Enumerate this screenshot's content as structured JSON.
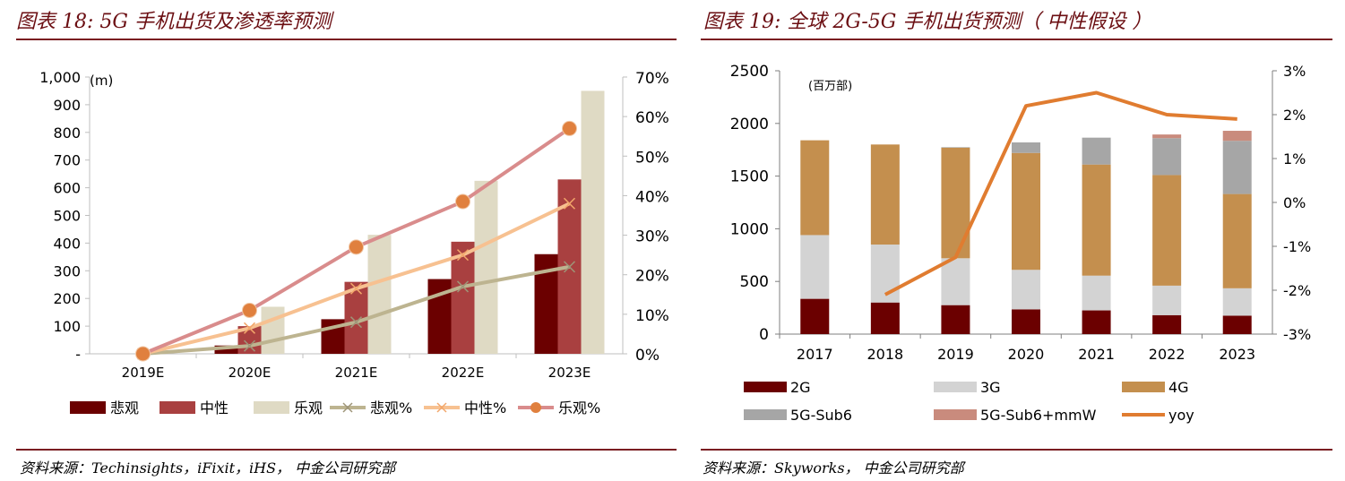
{
  "left": {
    "title": "图表 18: 5G 手机出货及渗透率预测",
    "source": "资料来源：Techinsights，iFixit，iHS， 中金公司研究部",
    "colors": {
      "bear": "#6b0000",
      "base": "#a94040",
      "bull": "#dfdac4",
      "bear_pct": "#bdb490",
      "base_pct": "#f7c191",
      "bull_pct": "#d98c8c",
      "dot": "#e0803e"
    },
    "chart_data": {
      "type": "bar",
      "categories": [
        "2019E",
        "2020E",
        "2021E",
        "2022E",
        "2023E"
      ],
      "unit_label": "(m)",
      "y_ticks": [
        "-",
        "100",
        "200",
        "300",
        "400",
        "500",
        "600",
        "700",
        "800",
        "900",
        "1,000"
      ],
      "ylim": [
        0,
        1000
      ],
      "y2_ticks": [
        "0%",
        "10%",
        "20%",
        "30%",
        "40%",
        "50%",
        "60%",
        "70%"
      ],
      "y2lim": [
        0,
        0.7
      ],
      "series": [
        {
          "name": "悲观",
          "kind": "bar",
          "values": [
            0,
            30,
            125,
            270,
            360
          ]
        },
        {
          "name": "中性",
          "kind": "bar",
          "values": [
            0,
            100,
            260,
            405,
            630
          ]
        },
        {
          "name": "乐观",
          "kind": "bar",
          "values": [
            0,
            170,
            430,
            625,
            950
          ]
        },
        {
          "name": "悲观%",
          "kind": "line",
          "values": [
            0.0,
            0.02,
            0.08,
            0.17,
            0.22
          ]
        },
        {
          "name": "中性%",
          "kind": "line",
          "values": [
            0.0,
            0.065,
            0.165,
            0.25,
            0.38
          ]
        },
        {
          "name": "乐观%",
          "kind": "line",
          "values": [
            0.0,
            0.11,
            0.27,
            0.385,
            0.57
          ]
        }
      ]
    }
  },
  "right": {
    "title": "图表 19:  全球 2G-5G 手机出货预测（ 中性假设 ）",
    "source": "资料来源：Skyworks， 中金公司研究部",
    "colors": {
      "2G": "#6b0000",
      "3G": "#d3d3d3",
      "4G": "#c48f4e",
      "5G-Sub6": "#a6a6a6",
      "5G-Sub6+mmW": "#c98b7d",
      "yoy": "#e07c30"
    },
    "chart_data": {
      "type": "bar",
      "stacked": true,
      "categories": [
        "2017",
        "2018",
        "2019",
        "2020",
        "2021",
        "2022",
        "2023"
      ],
      "unit_label": "(百万部)",
      "y_ticks": [
        "0",
        "500",
        "1000",
        "1500",
        "2000",
        "2500"
      ],
      "ylim": [
        0,
        2500
      ],
      "y2_ticks": [
        "-3%",
        "-2%",
        "-1%",
        "0%",
        "1%",
        "2%",
        "3%"
      ],
      "y2lim": [
        -0.03,
        0.03
      ],
      "series": [
        {
          "name": "2G",
          "kind": "bar",
          "values": [
            335,
            300,
            275,
            235,
            225,
            180,
            175
          ]
        },
        {
          "name": "3G",
          "kind": "bar",
          "values": [
            605,
            550,
            445,
            375,
            330,
            280,
            260
          ]
        },
        {
          "name": "4G",
          "kind": "bar",
          "values": [
            900,
            950,
            1050,
            1110,
            1055,
            1050,
            895
          ]
        },
        {
          "name": "5G-Sub6",
          "kind": "bar",
          "values": [
            0,
            0,
            5,
            100,
            255,
            350,
            505
          ]
        },
        {
          "name": "5G-Sub6+mmW",
          "kind": "bar",
          "values": [
            0,
            0,
            0,
            0,
            0,
            35,
            95
          ]
        },
        {
          "name": "yoy",
          "kind": "line",
          "values": [
            null,
            -0.021,
            -0.0125,
            0.022,
            0.025,
            0.02,
            0.019
          ]
        }
      ]
    }
  }
}
